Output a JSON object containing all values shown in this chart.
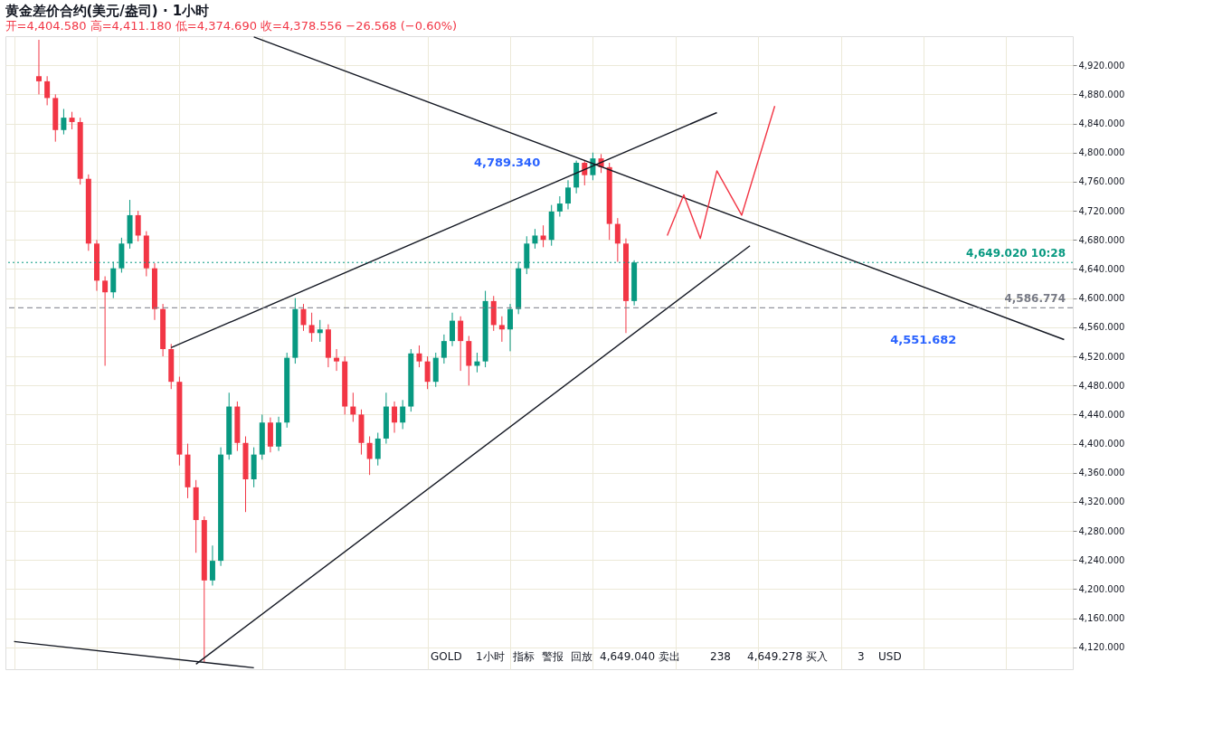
{
  "chart_data": {
    "type": "candlestick",
    "title": "黄金差价合约(美元/盎司) · 1小时",
    "subtitle": "开=4,404.580 高=4,411.180 低=4,374.690 收=4,378.556 −26.568 (−0.60%)",
    "categories": [
      null,
      null,
      null,
      null,
      null,
      null,
      null,
      null,
      null,
      null,
      null,
      null,
      null,
      null,
      null,
      null,
      null,
      null,
      null,
      null,
      null,
      null,
      null,
      null,
      null,
      null,
      null,
      null,
      null,
      null,
      null,
      null,
      null,
      null,
      null,
      null,
      null,
      null,
      null,
      null,
      null,
      null,
      null,
      null,
      null,
      null,
      null,
      null,
      null,
      null,
      null,
      null,
      null,
      null,
      null,
      null,
      null,
      null,
      null,
      null,
      null,
      null,
      null,
      null,
      null,
      null,
      null,
      null,
      null,
      null,
      null,
      null,
      null,
      null,
      null,
      null,
      null,
      null,
      null,
      null,
      null,
      null,
      null,
      null,
      null,
      null,
      null,
      null,
      null,
      null,
      null,
      null,
      null,
      null,
      null,
      null,
      null,
      null,
      null,
      null,
      null,
      null,
      null,
      null,
      null,
      null,
      null,
      null,
      null,
      null,
      null,
      null,
      null,
      null,
      null,
      null,
      null,
      null,
      null,
      null,
      null,
      null,
      null,
      null,
      null,
      null,
      null,
      null
    ],
    "ohlc": [
      null,
      null,
      null,
      [
        4905,
        4955,
        4880,
        4898
      ],
      [
        4898,
        4905,
        4865,
        4875
      ],
      [
        4875,
        4880,
        4815,
        4831
      ],
      [
        4831,
        4860,
        4825,
        4848
      ],
      [
        4848,
        4856,
        4832,
        4842
      ],
      [
        4842,
        4848,
        4756,
        4764
      ],
      [
        4764,
        4770,
        4665,
        4675
      ],
      [
        4675,
        4680,
        4610,
        4624
      ],
      [
        4624,
        4630,
        4507,
        4608
      ],
      [
        4608,
        4650,
        4600,
        4641
      ],
      [
        4641,
        4683,
        4635,
        4675
      ],
      [
        4675,
        4735,
        4668,
        4714
      ],
      [
        4714,
        4720,
        4678,
        4686
      ],
      [
        4686,
        4692,
        4630,
        4641
      ],
      [
        4641,
        4648,
        4570,
        4585
      ],
      [
        4585,
        4592,
        4520,
        4530
      ],
      [
        4530,
        4537,
        4475,
        4485
      ],
      [
        4485,
        4492,
        4370,
        4385
      ],
      [
        4385,
        4400,
        4325,
        4340
      ],
      [
        4340,
        4350,
        4250,
        4295
      ],
      [
        4295,
        4300,
        4100,
        4212
      ],
      [
        4212,
        4260,
        4205,
        4239
      ],
      [
        4239,
        4395,
        4232,
        4385
      ],
      [
        4385,
        4470,
        4378,
        4451
      ],
      [
        4451,
        4458,
        4390,
        4401
      ],
      [
        4401,
        4410,
        4306,
        4351
      ],
      [
        4351,
        4395,
        4340,
        4385
      ],
      [
        4385,
        4440,
        4378,
        4429
      ],
      [
        4429,
        4436,
        4388,
        4396
      ],
      [
        4396,
        4437,
        4390,
        4429
      ],
      [
        4429,
        4525,
        4422,
        4518
      ],
      [
        4518,
        4600,
        4510,
        4585
      ],
      [
        4585,
        4592,
        4555,
        4563
      ],
      [
        4563,
        4580,
        4540,
        4552
      ],
      [
        4552,
        4570,
        4540,
        4557
      ],
      [
        4557,
        4564,
        4505,
        4518
      ],
      [
        4518,
        4530,
        4500,
        4513
      ],
      [
        4513,
        4520,
        4440,
        4451
      ],
      [
        4451,
        4470,
        4430,
        4440
      ],
      [
        4440,
        4447,
        4385,
        4401
      ],
      [
        4401,
        4410,
        4357,
        4379
      ],
      [
        4379,
        4415,
        4370,
        4407
      ],
      [
        4407,
        4470,
        4400,
        4451
      ],
      [
        4451,
        4458,
        4415,
        4429
      ],
      [
        4429,
        4460,
        4420,
        4451
      ],
      [
        4451,
        4530,
        4444,
        4524
      ],
      [
        4524,
        4535,
        4505,
        4513
      ],
      [
        4513,
        4520,
        4475,
        4485
      ],
      [
        4485,
        4525,
        4478,
        4518
      ],
      [
        4518,
        4550,
        4510,
        4541
      ],
      [
        4541,
        4580,
        4534,
        4569
      ],
      [
        4569,
        4575,
        4500,
        4541
      ],
      [
        4541,
        4548,
        4480,
        4507
      ],
      [
        4507,
        4525,
        4498,
        4513
      ],
      [
        4513,
        4610,
        4505,
        4596
      ],
      [
        4596,
        4603,
        4555,
        4563
      ],
      [
        4563,
        4575,
        4540,
        4557
      ],
      [
        4557,
        4592,
        4527,
        4585
      ],
      [
        4585,
        4650,
        4578,
        4641
      ],
      [
        4641,
        4685,
        4633,
        4675
      ],
      [
        4675,
        4695,
        4668,
        4686
      ],
      [
        4686,
        4700,
        4670,
        4680
      ],
      [
        4680,
        4728,
        4672,
        4719
      ],
      [
        4719,
        4740,
        4712,
        4730
      ],
      [
        4730,
        4762,
        4722,
        4752
      ],
      [
        4752,
        4789,
        4744,
        4786
      ],
      [
        4786,
        4790,
        4755,
        4769
      ],
      [
        4769,
        4800,
        4762,
        4792
      ],
      [
        4792,
        4798,
        4772,
        4780
      ],
      [
        4780,
        4786,
        4680,
        4702
      ],
      [
        4702,
        4710,
        4650,
        4675
      ],
      [
        4675,
        4682,
        4552,
        4596
      ],
      [
        4596,
        4652,
        4590,
        4649
      ],
      null,
      null,
      null,
      null,
      null,
      null,
      null,
      null,
      null,
      null,
      null,
      null,
      null,
      null,
      null,
      null,
      null,
      null,
      null,
      null,
      null,
      null,
      null,
      null,
      null,
      null,
      null,
      null,
      null,
      null,
      null,
      null,
      null,
      null,
      null,
      null,
      null,
      null,
      null,
      null,
      null,
      null,
      null,
      null,
      null,
      null,
      null,
      null,
      null,
      null,
      null,
      null
    ],
    "series": [
      {
        "type": "line",
        "color": "#131722",
        "values": [
          null,
          null,
          null,
          null,
          null,
          null,
          null,
          null,
          null,
          null,
          null,
          null,
          null,
          null,
          null,
          null,
          null,
          null,
          null,
          4532,
          null,
          null,
          null,
          null,
          null,
          null,
          null,
          null,
          null,
          null,
          null,
          null,
          null,
          null,
          null,
          null,
          null,
          null,
          null,
          null,
          null,
          null,
          null,
          null,
          null,
          null,
          null,
          null,
          null,
          null,
          null,
          null,
          null,
          null,
          null,
          null,
          null,
          null,
          null,
          null,
          null,
          null,
          null,
          null,
          null,
          null,
          null,
          null,
          null,
          null,
          null,
          null,
          null,
          null,
          null,
          null,
          null,
          null,
          null,
          null,
          null,
          null,
          null,
          null,
          null,
          4855,
          null,
          null,
          null,
          null,
          null,
          null,
          null,
          null,
          null,
          null,
          null,
          null,
          null,
          null,
          null,
          null,
          null,
          null,
          null,
          null,
          null,
          null,
          null,
          null,
          null,
          null,
          null,
          null,
          null,
          null,
          null,
          null,
          null,
          null,
          null,
          null,
          null,
          null,
          null,
          null,
          null,
          null
        ]
      },
      {
        "type": "line",
        "color": "#131722",
        "values": [
          null,
          null,
          null,
          null,
          null,
          null,
          null,
          null,
          null,
          null,
          null,
          null,
          null,
          null,
          null,
          null,
          null,
          null,
          null,
          null,
          null,
          null,
          4097,
          null,
          null,
          null,
          null,
          null,
          null,
          null,
          null,
          null,
          null,
          null,
          null,
          null,
          null,
          null,
          null,
          null,
          null,
          null,
          null,
          null,
          null,
          null,
          null,
          null,
          null,
          null,
          null,
          null,
          null,
          null,
          null,
          null,
          null,
          null,
          null,
          null,
          null,
          null,
          null,
          null,
          null,
          null,
          null,
          null,
          null,
          null,
          null,
          null,
          null,
          null,
          null,
          null,
          null,
          null,
          null,
          null,
          null,
          null,
          null,
          null,
          null,
          null,
          null,
          null,
          null,
          4672,
          null,
          null,
          null,
          null,
          null,
          null,
          null,
          null,
          null,
          null,
          null,
          null,
          null,
          null,
          null,
          null,
          null,
          null,
          null,
          null,
          null,
          null,
          null,
          null,
          null,
          null,
          null,
          null,
          null,
          null,
          null,
          null,
          null,
          null,
          null,
          null,
          null,
          null
        ]
      },
      {
        "type": "line",
        "color": "#131722",
        "values": [
          null,
          null,
          null,
          null,
          null,
          null,
          null,
          null,
          null,
          null,
          null,
          null,
          null,
          null,
          null,
          null,
          null,
          null,
          null,
          null,
          null,
          null,
          null,
          null,
          null,
          null,
          null,
          null,
          null,
          4959,
          null,
          null,
          null,
          null,
          null,
          null,
          null,
          null,
          null,
          null,
          null,
          null,
          null,
          null,
          null,
          null,
          null,
          null,
          null,
          null,
          null,
          null,
          null,
          null,
          null,
          null,
          null,
          null,
          null,
          null,
          null,
          null,
          null,
          null,
          null,
          null,
          null,
          null,
          null,
          null,
          null,
          null,
          null,
          null,
          null,
          null,
          null,
          null,
          null,
          null,
          null,
          null,
          null,
          null,
          null,
          null,
          null,
          null,
          null,
          null,
          null,
          null,
          null,
          null,
          null,
          null,
          null,
          null,
          null,
          null,
          null,
          null,
          null,
          null,
          null,
          null,
          null,
          null,
          null,
          null,
          null,
          null,
          null,
          null,
          null,
          null,
          null,
          null,
          null,
          null,
          null,
          null,
          null,
          null,
          null,
          null,
          null,
          4543
        ]
      },
      {
        "type": "line",
        "color": "#131722",
        "values": [
          4128,
          null,
          null,
          null,
          null,
          null,
          null,
          null,
          null,
          null,
          null,
          null,
          null,
          null,
          null,
          null,
          null,
          null,
          null,
          null,
          null,
          null,
          null,
          null,
          null,
          null,
          null,
          null,
          null,
          4092,
          null,
          null,
          null,
          null,
          null,
          null,
          null,
          null,
          null,
          null,
          null,
          null,
          null,
          null,
          null,
          null,
          null,
          null,
          null,
          null,
          null,
          null,
          null,
          null,
          null,
          null,
          null,
          null,
          null,
          null,
          null,
          null,
          null,
          null,
          null,
          null,
          null,
          null,
          null,
          null,
          null,
          null,
          null,
          null,
          null,
          null,
          null,
          null,
          null,
          null,
          null,
          null,
          null,
          null,
          null,
          null,
          null,
          null,
          null,
          null,
          null,
          null,
          null,
          null,
          null,
          null,
          null,
          null,
          null,
          null,
          null,
          null,
          null,
          null,
          null,
          null,
          null,
          null,
          null,
          null,
          null,
          null,
          null,
          null,
          null,
          null,
          null,
          null,
          null,
          null,
          null,
          null,
          null,
          null,
          null,
          null,
          null,
          null
        ]
      },
      {
        "type": "line",
        "color": "#f23645",
        "values": [
          null,
          null,
          null,
          null,
          null,
          null,
          null,
          null,
          null,
          null,
          null,
          null,
          null,
          null,
          null,
          null,
          null,
          null,
          null,
          null,
          null,
          null,
          null,
          null,
          null,
          null,
          null,
          null,
          null,
          null,
          null,
          null,
          null,
          null,
          null,
          null,
          null,
          null,
          null,
          null,
          null,
          null,
          null,
          null,
          null,
          null,
          null,
          null,
          null,
          null,
          null,
          null,
          null,
          null,
          null,
          null,
          null,
          null,
          null,
          null,
          null,
          null,
          null,
          null,
          null,
          null,
          null,
          null,
          null,
          null,
          null,
          null,
          null,
          null,
          null,
          null,
          null,
          null,
          null,
          4686,
          null,
          4742,
          null,
          4682,
          null,
          4775,
          null,
          null,
          4714,
          null,
          null,
          null,
          4864,
          null,
          null,
          null,
          null,
          null,
          null,
          null,
          null,
          null,
          null,
          null,
          null,
          null,
          null,
          null,
          null,
          null,
          null,
          null,
          null,
          null,
          null,
          null,
          null,
          null,
          null,
          null,
          null,
          null,
          null,
          null,
          null,
          null,
          null,
          null
        ]
      }
    ],
    "ylim": [
      4090,
      4960
    ],
    "yticks": [
      {
        "value": 4120,
        "label": "4,120.000"
      },
      {
        "value": 4160,
        "label": "4,160.000"
      },
      {
        "value": 4200,
        "label": "4,200.000"
      },
      {
        "value": 4240,
        "label": "4,240.000"
      },
      {
        "value": 4280,
        "label": "4,280.000"
      },
      {
        "value": 4320,
        "label": "4,320.000"
      },
      {
        "value": 4360,
        "label": "4,360.000"
      },
      {
        "value": 4400,
        "label": "4,400.000"
      },
      {
        "value": 4440,
        "label": "4,440.000"
      },
      {
        "value": 4480,
        "label": "4,480.000"
      },
      {
        "value": 4520,
        "label": "4,520.000"
      },
      {
        "value": 4560,
        "label": "4,560.000"
      },
      {
        "value": 4600,
        "label": "4,600.000"
      },
      {
        "value": 4640,
        "label": "4,640.000"
      },
      {
        "value": 4680,
        "label": "4,680.000"
      },
      {
        "value": 4720,
        "label": "4,720.000"
      },
      {
        "value": 4760,
        "label": "4,760.000"
      },
      {
        "value": 4800,
        "label": "4,800.000"
      },
      {
        "value": 4840,
        "label": "4,840.000"
      },
      {
        "value": 4880,
        "label": "4,880.000"
      },
      {
        "value": 4920,
        "label": "4,920.000"
      }
    ],
    "ref_lines": [
      {
        "axis": "y",
        "value": 4649.02,
        "label": "4,649.020 10:28",
        "color": "#089981",
        "line_style": "dotted"
      },
      {
        "axis": "y",
        "value": 4586.774,
        "label": "4,586.774",
        "color": "#787b86",
        "line_style": "dashed"
      }
    ],
    "annotations": [
      "4,789.340",
      "4,551.682",
      "GOLD",
      "1小时",
      "指标",
      "警报",
      "回放",
      "4,649.040 卖出",
      "238",
      "4,649.278 买入",
      "3",
      "USD"
    ],
    "grid": true,
    "tick_labels": "y"
  }
}
